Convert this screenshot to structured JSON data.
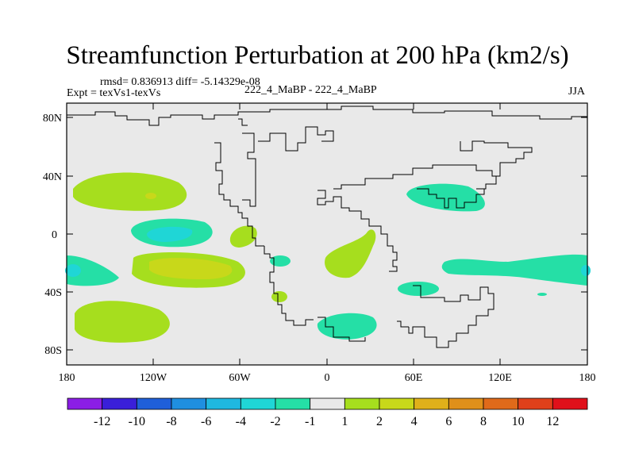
{
  "title": "Streamfunction Perturbation at 200 hPa (km2/s)",
  "stats": "rmsd= 0.836913 diff= -5.14329e-08",
  "experiment": "Expt = texVs1-texVs",
  "case": "222_4_MaBP - 222_4_MaBP",
  "season": "JJA",
  "lat_ticks": [
    "80N",
    "40N",
    "0",
    "40S",
    "80S"
  ],
  "lon_ticks": [
    "180",
    "120W",
    "60W",
    "0",
    "60E",
    "120E",
    "180"
  ],
  "colorbar": {
    "colors": [
      "#8b1ee6",
      "#3a1fd9",
      "#1f5fd9",
      "#1f8fe0",
      "#1fb8e0",
      "#1fd6d6",
      "#25dfa6",
      "#e9e9e9",
      "#a6de1e",
      "#c8d81a",
      "#e0b01a",
      "#e0901a",
      "#e06a1a",
      "#e0401a",
      "#e0101a"
    ],
    "labels": [
      "-12",
      "-10",
      "-8",
      "-6",
      "-4",
      "-2",
      "-1",
      "1",
      "2",
      "4",
      "6",
      "8",
      "10",
      "12"
    ]
  },
  "colors": {
    "background": "#e9e9e9",
    "pos_light": "#a6de1e",
    "pos_mid": "#c8d81a",
    "neg_light": "#25dfa6",
    "neg_mid": "#1fd6d6"
  }
}
